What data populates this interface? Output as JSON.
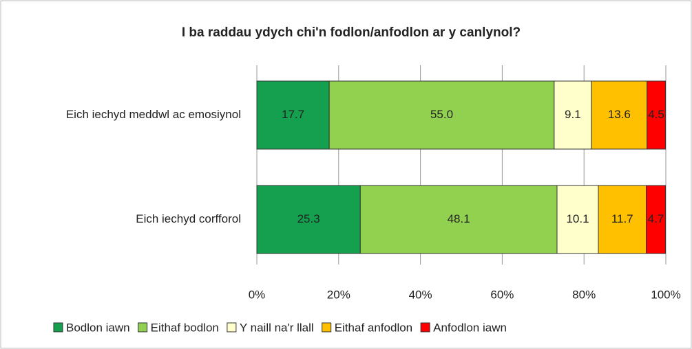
{
  "chart_data": {
    "type": "stacked_bar_horizontal",
    "title": "I ba raddau ydych chi'n fodlon/anfodlon ar y canlynol?",
    "categories": [
      "Eich iechyd meddwl ac emosiynol",
      "Eich iechyd corfforol"
    ],
    "series": [
      {
        "name": "Bodlon iawn",
        "color": "#14a04f",
        "values": [
          17.7,
          25.3
        ]
      },
      {
        "name": "Eithaf bodlon",
        "color": "#92d050",
        "values": [
          55.0,
          48.1
        ]
      },
      {
        "name": "Y naill na'r llall",
        "color": "#ffffcc",
        "values": [
          9.1,
          10.1
        ]
      },
      {
        "name": "Eithaf anfodlon",
        "color": "#ffc000",
        "values": [
          13.6,
          11.7
        ]
      },
      {
        "name": "Anfodlon iawn",
        "color": "#ff0000",
        "values": [
          4.5,
          4.7
        ]
      }
    ],
    "value_labels": [
      [
        "17.7",
        "25.3"
      ],
      [
        "55.0",
        "48.1"
      ],
      [
        "9.1",
        "10.1"
      ],
      [
        "13.6",
        "11.7"
      ],
      [
        "4.5",
        "4.7"
      ]
    ],
    "xlim": [
      0,
      100
    ],
    "xticks": [
      {
        "value": 0,
        "label": "0%"
      },
      {
        "value": 20,
        "label": "20%"
      },
      {
        "value": 40,
        "label": "40%"
      },
      {
        "value": 60,
        "label": "60%"
      },
      {
        "value": 80,
        "label": "80%"
      },
      {
        "value": 100,
        "label": "100%"
      }
    ],
    "grid": true,
    "legend": "bottom"
  }
}
